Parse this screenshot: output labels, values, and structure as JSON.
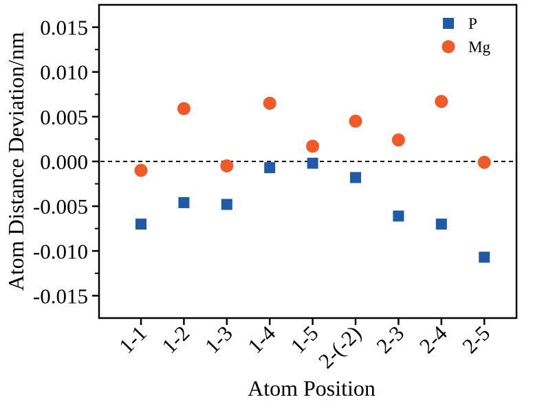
{
  "chart_data": {
    "type": "scatter",
    "categories": [
      "1-1",
      "1-2",
      "1-3",
      "1-4",
      "1-5",
      "2-(-2)",
      "2-3",
      "2-4",
      "2-5"
    ],
    "series": [
      {
        "name": "P",
        "marker": "square",
        "color": "#1f5aa6",
        "values": [
          -0.007,
          -0.0046,
          -0.0048,
          -0.0007,
          -0.0002,
          -0.0018,
          -0.0061,
          -0.007,
          -0.0107
        ]
      },
      {
        "name": "Mg",
        "marker": "circle",
        "color": "#f05a28",
        "values": [
          -0.001,
          0.0059,
          -0.0005,
          0.0065,
          0.0017,
          0.0045,
          0.0024,
          0.0067,
          -0.0001
        ]
      }
    ],
    "title": "",
    "xlabel": "Atom Position",
    "ylabel": "Atom Distance Deviation/nm",
    "ylim": [
      -0.0175,
      0.0175
    ],
    "yticks": [
      "0.015",
      "0.010",
      "0.005",
      "0.000",
      "-0.005",
      "-0.010",
      "-0.015"
    ],
    "ytick_values": [
      0.015,
      0.01,
      0.005,
      0.0,
      -0.005,
      -0.01,
      -0.015
    ],
    "reference_line": {
      "y": 0.0,
      "style": "dashed"
    },
    "grid": false,
    "legend_position": "top-right"
  }
}
